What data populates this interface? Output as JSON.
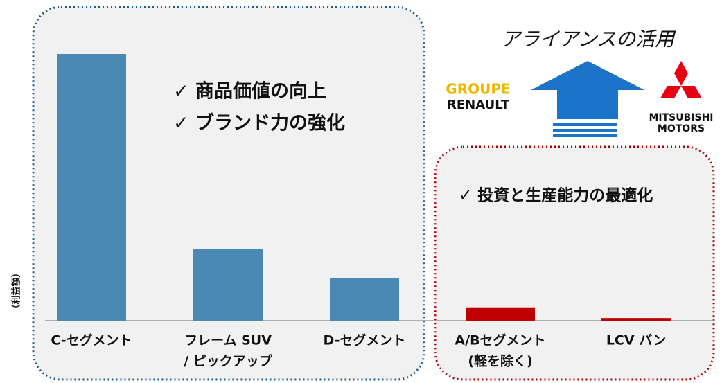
{
  "chart_data": {
    "type": "bar",
    "ylabel": "（利益額）",
    "categories": [
      [
        "C-セグメント"
      ],
      [
        "フレーム SUV",
        "/ ピックアップ"
      ],
      [
        "D-セグメント"
      ],
      [
        "A/Bセグメント",
        "(軽を除く)"
      ],
      [
        "LCV バン"
      ]
    ],
    "values": [
      100,
      27,
      16,
      5,
      1
    ],
    "colors": [
      "#4a89b4",
      "#4a89b4",
      "#4a89b4",
      "#c00000",
      "#c00000"
    ],
    "ylim": [
      0,
      100
    ],
    "annotations": {
      "alliance": "アライアンスの活用",
      "blue_points": [
        "✓ 商品価値の向上",
        "✓ ブランド力の強化"
      ],
      "red_points": [
        "✓ 投資と生産能力の最適化"
      ],
      "renault": [
        "GROUPE",
        "RENAULT"
      ],
      "mitsubishi": [
        "MITSUBISHI",
        "MOTORS"
      ]
    }
  }
}
